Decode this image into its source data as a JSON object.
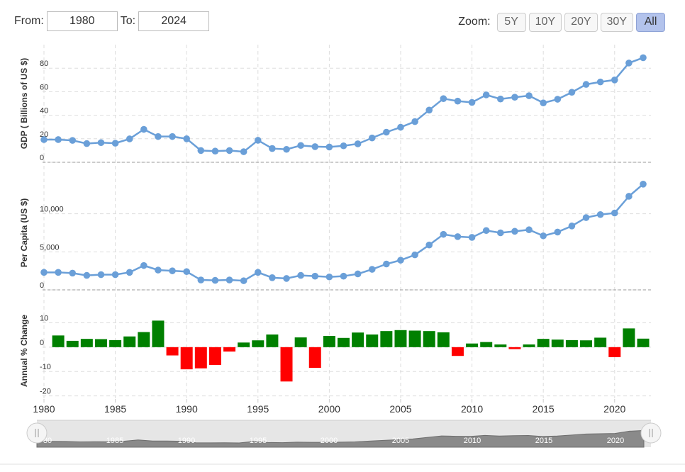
{
  "range": {
    "from_label": "From:",
    "from_value": "1980",
    "to_label": "To:",
    "to_value": "2024"
  },
  "zoom": {
    "label": "Zoom:",
    "buttons": [
      "5Y",
      "10Y",
      "20Y",
      "30Y",
      "All"
    ],
    "active": "All"
  },
  "colors": {
    "line": "#6a9fd8",
    "positive": "#008000",
    "negative": "#ff0000",
    "grid": "#dddddd",
    "navigator": "#8a8a8a",
    "navigator_bg": "#e6e6e6"
  },
  "chart_data": [
    {
      "type": "line",
      "ylabel": "GDP ( Billions of US $)",
      "yticks": [
        0,
        20,
        40,
        60,
        80
      ],
      "ylim": [
        0,
        100
      ],
      "grid": true,
      "x": [
        1980,
        1981,
        1982,
        1983,
        1984,
        1985,
        1986,
        1987,
        1988,
        1989,
        1990,
        1991,
        1992,
        1993,
        1994,
        1995,
        1996,
        1997,
        1998,
        1999,
        2000,
        2001,
        2002,
        2003,
        2004,
        2005,
        2006,
        2007,
        2008,
        2009,
        2010,
        2011,
        2012,
        2013,
        2014,
        2015,
        2016,
        2017,
        2018,
        2019,
        2020,
        2021,
        2022
      ],
      "values": [
        19.3,
        19.3,
        18.6,
        15.9,
        16.7,
        16.2,
        19.9,
        28.0,
        21.9,
        21.9,
        20.0,
        10.0,
        9.5,
        10.0,
        9.0,
        18.7,
        11.7,
        11.0,
        14.3,
        13.3,
        13.0,
        14.0,
        15.7,
        20.7,
        25.6,
        29.8,
        34.6,
        44.4,
        54.1,
        52.0,
        50.9,
        57.3,
        53.8,
        55.3,
        56.6,
        50.5,
        53.6,
        59.5,
        66.2,
        68.3,
        70.0,
        84.4,
        88.9
      ]
    },
    {
      "type": "line",
      "ylabel": "Per Capita (US $)",
      "yticks": [
        0,
        5000,
        10000
      ],
      "yticklabels": [
        "0",
        "5,000",
        "10,000"
      ],
      "ylim": [
        0,
        15000
      ],
      "grid": true,
      "x": [
        1980,
        1981,
        1982,
        1983,
        1984,
        1985,
        1986,
        1987,
        1988,
        1989,
        1990,
        1991,
        1992,
        1993,
        1994,
        1995,
        1996,
        1997,
        1998,
        1999,
        2000,
        2001,
        2002,
        2003,
        2004,
        2005,
        2006,
        2007,
        2008,
        2009,
        2010,
        2011,
        2012,
        2013,
        2014,
        2015,
        2016,
        2017,
        2018,
        2019,
        2020,
        2021,
        2022
      ],
      "values": [
        2300,
        2300,
        2200,
        1900,
        2000,
        2000,
        2300,
        3200,
        2600,
        2500,
        2400,
        1300,
        1250,
        1300,
        1200,
        2300,
        1600,
        1500,
        1900,
        1800,
        1700,
        1800,
        2100,
        2700,
        3400,
        3900,
        4600,
        5900,
        7300,
        7000,
        6900,
        7800,
        7500,
        7700,
        7900,
        7100,
        7600,
        8400,
        9500,
        9900,
        10100,
        12300,
        13900
      ]
    },
    {
      "type": "bar",
      "ylabel": "Annual % Change",
      "yticks": [
        -20,
        -10,
        0,
        10
      ],
      "ylim": [
        -21,
        18
      ],
      "grid": true,
      "x": [
        1981,
        1982,
        1983,
        1984,
        1985,
        1986,
        1987,
        1988,
        1989,
        1990,
        1991,
        1992,
        1993,
        1994,
        1995,
        1996,
        1997,
        1998,
        1999,
        2000,
        2001,
        2002,
        2003,
        2004,
        2005,
        2006,
        2007,
        2008,
        2009,
        2010,
        2011,
        2012,
        2013,
        2014,
        2015,
        2016,
        2017,
        2018,
        2019,
        2020,
        2021,
        2022
      ],
      "values": [
        4.8,
        2.6,
        3.4,
        3.3,
        2.9,
        4.4,
        6.2,
        10.9,
        -3.4,
        -9.1,
        -8.7,
        -7.3,
        -1.8,
        1.9,
        2.8,
        5.2,
        -14.1,
        4.0,
        -8.5,
        4.6,
        3.8,
        6.0,
        5.2,
        6.6,
        7.0,
        6.8,
        6.6,
        6.1,
        -3.6,
        1.5,
        2.1,
        1.1,
        -0.8,
        1.1,
        3.4,
        3.1,
        2.9,
        2.8,
        3.9,
        -4.1,
        7.7,
        3.5
      ]
    }
  ],
  "x_axis": {
    "ticks": [
      1980,
      1985,
      1990,
      1995,
      2000,
      2005,
      2010,
      2015,
      2020
    ]
  },
  "navigator": {
    "ticks": [
      "80",
      "1985",
      "1990",
      "1995",
      "2000",
      "2005",
      "2010",
      "2015",
      "2020"
    ]
  }
}
